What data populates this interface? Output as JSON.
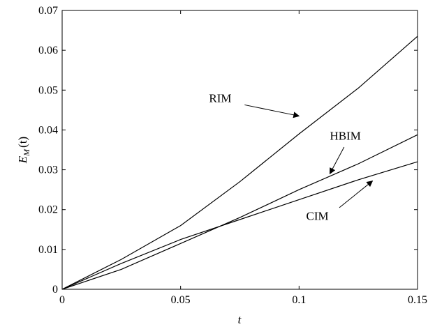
{
  "chart_data": {
    "type": "line",
    "xlabel": "t",
    "ylabel": {
      "main": "E",
      "sub": "M",
      "tail": "(t)"
    },
    "xlim": [
      0,
      0.15
    ],
    "ylim": [
      0,
      0.07
    ],
    "x_ticks": [
      0,
      0.05,
      0.1,
      0.15
    ],
    "x_tick_labels": [
      "0",
      "0.05",
      "0.1",
      "0.15"
    ],
    "y_ticks": [
      0,
      0.01,
      0.02,
      0.03,
      0.04,
      0.05,
      0.06,
      0.07
    ],
    "y_tick_labels": [
      "0",
      "0.01",
      "0.02",
      "0.03",
      "0.04",
      "0.05",
      "0.06",
      "0.07"
    ],
    "grid": false,
    "x": [
      0,
      0.025,
      0.05,
      0.075,
      0.1,
      0.125,
      0.15
    ],
    "series": [
      {
        "name": "RIM",
        "values": [
          0,
          0.0075,
          0.016,
          0.027,
          0.039,
          0.0505,
          0.0635
        ]
      },
      {
        "name": "HBIM",
        "values": [
          0,
          0.005,
          0.0115,
          0.018,
          0.025,
          0.0315,
          0.0388
        ]
      },
      {
        "name": "CIM",
        "values": [
          0,
          0.0065,
          0.0125,
          0.0175,
          0.0225,
          0.0275,
          0.032
        ]
      }
    ],
    "annotations": [
      {
        "text": "RIM",
        "text_at": [
          0.062,
          0.047
        ],
        "arrow_from": [
          0.077,
          0.0463
        ],
        "arrow_to": [
          0.1,
          0.0435
        ]
      },
      {
        "text": "HBIM",
        "text_at": [
          0.113,
          0.0375
        ],
        "arrow_from": [
          0.119,
          0.0357
        ],
        "arrow_to": [
          0.113,
          0.029
        ]
      },
      {
        "text": "CIM",
        "text_at": [
          0.103,
          0.0174
        ],
        "arrow_from": [
          0.117,
          0.0205
        ],
        "arrow_to": [
          0.131,
          0.0272
        ]
      }
    ]
  }
}
